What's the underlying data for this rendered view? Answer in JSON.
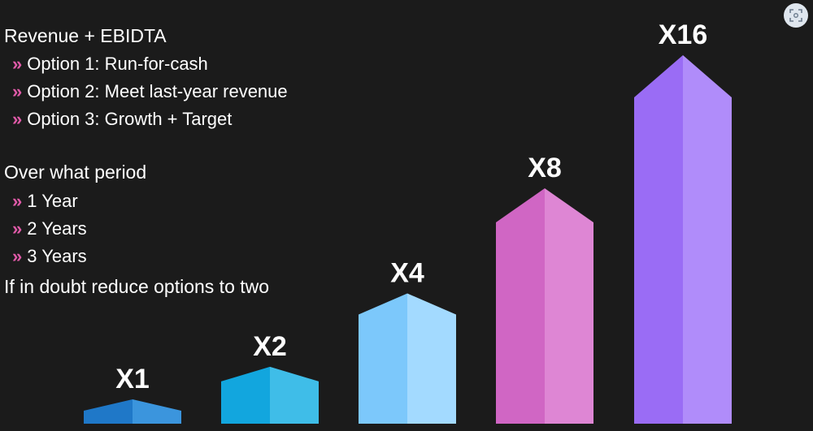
{
  "text": {
    "heading1": "Revenue + EBIDTA",
    "options": [
      "Option 1: Run-for-cash",
      "Option 2: Meet last-year revenue",
      "Option 3: Growth + Target"
    ],
    "heading2": "Over what period",
    "periods": [
      "1 Year",
      "2 Years",
      "3 Years"
    ],
    "footer": "If in doubt reduce options to two",
    "bullet_mark": "»"
  },
  "chart_data": {
    "type": "bar",
    "categories": [
      "X1",
      "X2",
      "X4",
      "X8",
      "X16"
    ],
    "values": [
      1,
      2,
      4,
      8,
      16
    ],
    "colors": [
      {
        "left": "#1f78c8",
        "right": "#3b95dd"
      },
      {
        "left": "#12a6de",
        "right": "#3fbde8"
      },
      {
        "left": "#7cc8fb",
        "right": "#a3daff"
      },
      {
        "left": "#d066c4",
        "right": "#de86d4"
      },
      {
        "left": "#9a6cf5",
        "right": "#b08cfa"
      }
    ],
    "data_labels": [
      "X1",
      "X2",
      "X4",
      "X8",
      "X16"
    ]
  },
  "icons": {
    "corner": "screenshot-scan-icon"
  }
}
